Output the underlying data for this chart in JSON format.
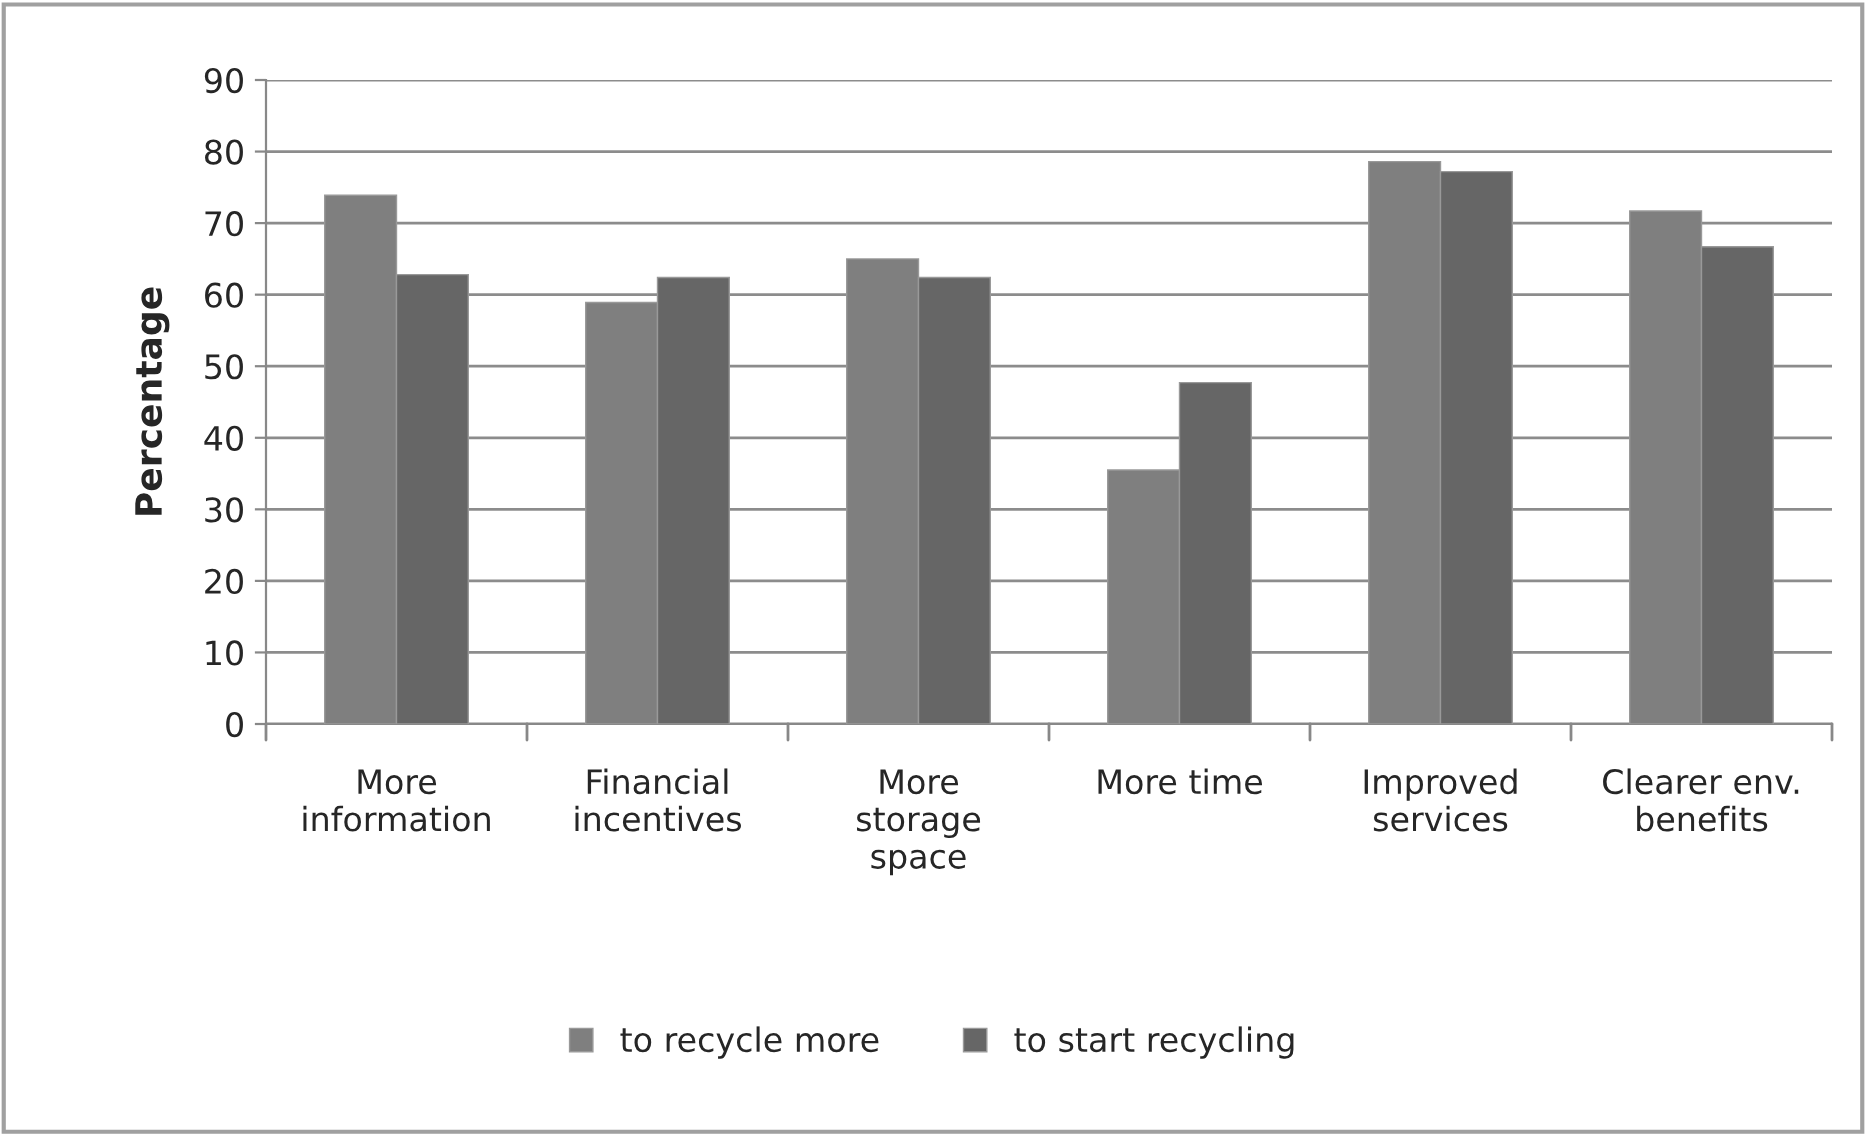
{
  "chart_data": {
    "type": "bar",
    "ylabel": "Percentage",
    "categories": [
      "More\ninformation",
      "Financial\nincentives",
      "More\nstorage\nspace",
      "More time",
      "Improved\nservices",
      "Clearer env.\nbenefits"
    ],
    "series": [
      {
        "name": "to recycle more",
        "color": "#7f7f7f",
        "values": [
          73.9,
          58.9,
          65.0,
          35.5,
          78.6,
          71.7
        ]
      },
      {
        "name": "to start recycling",
        "color": "#666666",
        "values": [
          62.8,
          62.4,
          62.4,
          47.7,
          77.2,
          66.7
        ]
      }
    ],
    "ylim": [
      0,
      90
    ],
    "yticks": [
      0,
      10,
      20,
      30,
      40,
      50,
      60,
      70,
      80,
      90
    ],
    "grid": "y",
    "legend": "bottom"
  }
}
